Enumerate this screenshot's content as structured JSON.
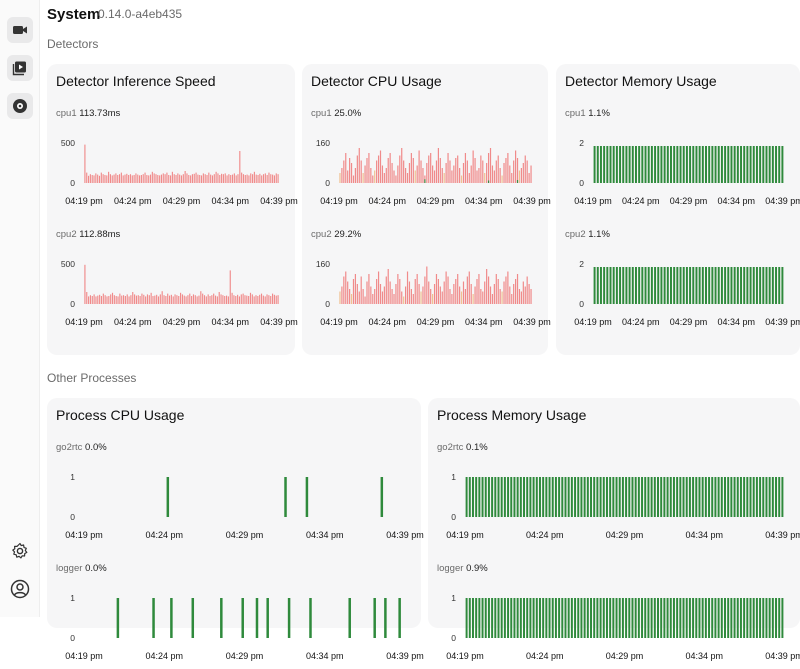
{
  "header": {
    "title": "System",
    "version": "0.14.0-a4eb435"
  },
  "sections": {
    "detectors": "Detectors",
    "other_processes": "Other Processes"
  },
  "sidebar": {
    "items": [
      {
        "icon": "video-icon",
        "active": true
      },
      {
        "icon": "playlist-icon",
        "active": true
      },
      {
        "icon": "disc-icon",
        "active": true
      },
      {
        "icon": "gear-icon",
        "active": false
      },
      {
        "icon": "user-icon",
        "active": false
      }
    ]
  },
  "colors": {
    "red": "#f08a8a",
    "orange": "#f0c090",
    "green": "#3a8a45",
    "bar_green": "#2f8a3c",
    "card_bg": "#f6f6f7"
  },
  "time_ticks": [
    "04:19 pm",
    "04:24 pm",
    "04:29 pm",
    "04:34 pm",
    "04:39 pm"
  ],
  "cards": {
    "inference": {
      "title": "Detector Inference Speed",
      "cpu1": {
        "label": "cpu1",
        "value": "113.73ms"
      },
      "cpu2": {
        "label": "cpu2",
        "value": "112.88ms"
      }
    },
    "cpu": {
      "title": "Detector CPU Usage",
      "cpu1": {
        "label": "cpu1",
        "value": "25.0%"
      },
      "cpu2": {
        "label": "cpu2",
        "value": "29.2%"
      }
    },
    "memory": {
      "title": "Detector Memory Usage",
      "cpu1": {
        "label": "cpu1",
        "value": "1.1%"
      },
      "cpu2": {
        "label": "cpu2",
        "value": "1.1%"
      }
    },
    "proc_cpu": {
      "title": "Process CPU Usage",
      "go2rtc": {
        "label": "go2rtc",
        "value": "0.0%"
      },
      "logger": {
        "label": "logger",
        "value": "0.0%"
      }
    },
    "proc_mem": {
      "title": "Process Memory Usage",
      "go2rtc": {
        "label": "go2rtc",
        "value": "0.1%"
      },
      "logger": {
        "label": "logger",
        "value": "0.9%"
      }
    }
  },
  "chart_data": [
    {
      "id": "inf1",
      "type": "bar",
      "ymax": 500,
      "yticks": [
        "500",
        "0"
      ],
      "color": "#f08a8a",
      "values": [
        480,
        130,
        90,
        110,
        100,
        95,
        120,
        105,
        90,
        130,
        110,
        100,
        95,
        140,
        110,
        95,
        105,
        120,
        100,
        110,
        130,
        95,
        105,
        115,
        100,
        110,
        95,
        100,
        120,
        105,
        95,
        100,
        110,
        130,
        100,
        95,
        105,
        140,
        120,
        110,
        100,
        95,
        105,
        120,
        110,
        130,
        100,
        95,
        140,
        110,
        100,
        120,
        105,
        95,
        110,
        150,
        120,
        100,
        95,
        110,
        115,
        130,
        105,
        100,
        95,
        120,
        110,
        100,
        130,
        105,
        95,
        110,
        140,
        120,
        100,
        115,
        110,
        120,
        95,
        110,
        100,
        105,
        120,
        95,
        110,
        400,
        130,
        110,
        100,
        105,
        95,
        120,
        110,
        140,
        105,
        100,
        115,
        95,
        110,
        120,
        100,
        130,
        110,
        105,
        95,
        120,
        110
      ]
    },
    {
      "id": "inf2",
      "type": "bar",
      "ymax": 500,
      "yticks": [
        "500",
        "0"
      ],
      "color": "#f08a8a",
      "values": [
        490,
        150,
        95,
        110,
        100,
        120,
        95,
        105,
        115,
        100,
        130,
        110,
        95,
        100,
        120,
        140,
        110,
        100,
        95,
        130,
        105,
        110,
        100,
        120,
        95,
        110,
        150,
        120,
        105,
        110,
        100,
        130,
        115,
        95,
        120,
        110,
        140,
        100,
        105,
        115,
        95,
        120,
        160,
        110,
        100,
        130,
        105,
        115,
        95,
        120,
        110,
        100,
        140,
        120,
        105,
        95,
        110,
        130,
        100,
        120,
        110,
        95,
        105,
        160,
        130,
        110,
        95,
        120,
        100,
        110,
        130,
        105,
        95,
        150,
        120,
        110,
        100,
        105,
        95,
        420,
        140,
        110,
        100,
        115,
        95,
        120,
        130,
        110,
        105,
        100,
        140,
        120,
        95,
        110,
        100,
        115,
        130,
        105,
        95,
        120,
        110,
        100,
        130,
        115,
        105,
        110
      ]
    },
    {
      "id": "cpu1",
      "type": "stacked-bar",
      "ymax": 160,
      "yticks": [
        "160",
        "0"
      ],
      "values": [
        40,
        60,
        90,
        120,
        50,
        100,
        80,
        30,
        60,
        110,
        140,
        90,
        40,
        70,
        100,
        120,
        60,
        30,
        50,
        90,
        110,
        130,
        70,
        40,
        60,
        100,
        120,
        80,
        50,
        30,
        70,
        110,
        140,
        90,
        60,
        40,
        80,
        120,
        100,
        50,
        70,
        130,
        90,
        60,
        30,
        80,
        110,
        120,
        70,
        50,
        90,
        140,
        100,
        60,
        40,
        80,
        120,
        90,
        50,
        70,
        100,
        110,
        60,
        30,
        80,
        120,
        90,
        40,
        70,
        130,
        100,
        50,
        60,
        110,
        90,
        40,
        80,
        120,
        140,
        70,
        50,
        90,
        110,
        60,
        30,
        80,
        100,
        120,
        70,
        40,
        90,
        130,
        100,
        50,
        60,
        80,
        110,
        90,
        40,
        70
      ],
      "green": [
        0,
        0,
        0,
        0,
        0,
        0,
        0,
        0,
        0,
        0,
        0,
        0,
        0,
        0,
        0,
        0,
        0,
        0,
        0,
        0,
        0,
        0,
        0,
        0,
        0,
        0,
        0,
        0,
        0,
        0,
        0,
        0,
        0,
        0,
        0,
        0,
        0,
        0,
        0,
        0,
        0,
        0,
        0,
        0,
        15,
        0,
        0,
        0,
        0,
        0,
        0,
        0,
        0,
        0,
        0,
        0,
        0,
        0,
        0,
        0,
        0,
        0,
        0,
        0,
        0,
        0,
        0,
        0,
        0,
        0,
        0,
        0,
        0,
        0,
        0,
        0,
        0,
        10,
        0,
        0,
        0,
        0,
        0,
        0,
        0,
        0,
        0,
        0,
        0,
        0,
        0,
        0,
        12,
        0,
        0,
        0,
        0,
        0,
        0,
        0
      ]
    },
    {
      "id": "cpu2",
      "type": "stacked-bar",
      "ymax": 160,
      "yticks": [
        "160",
        "0"
      ],
      "values": [
        50,
        70,
        110,
        130,
        90,
        60,
        40,
        100,
        120,
        80,
        50,
        110,
        60,
        30,
        90,
        120,
        70,
        40,
        60,
        100,
        130,
        80,
        50,
        70,
        110,
        140,
        90,
        60,
        40,
        80,
        120,
        100,
        50,
        30,
        70,
        130,
        90,
        60,
        40,
        100,
        120,
        80,
        50,
        70,
        110,
        150,
        90,
        60,
        40,
        80,
        120,
        100,
        70,
        50,
        90,
        130,
        110,
        60,
        40,
        80,
        100,
        120,
        70,
        50,
        90,
        60,
        110,
        130,
        80,
        40,
        70,
        100,
        120,
        60,
        50,
        90,
        140,
        110,
        70,
        40,
        80,
        120,
        100,
        60,
        50,
        90,
        110,
        130,
        70,
        40,
        80,
        100,
        120,
        60,
        50,
        90,
        70,
        110,
        80,
        60
      ],
      "green": [
        0,
        0,
        0,
        0,
        0,
        0,
        0,
        0,
        0,
        0,
        0,
        0,
        0,
        0,
        0,
        0,
        0,
        0,
        0,
        0,
        0,
        0,
        0,
        0,
        0,
        0,
        0,
        0,
        0,
        0,
        0,
        0,
        0,
        0,
        0,
        0,
        0,
        0,
        0,
        0,
        0,
        0,
        0,
        0,
        0,
        0,
        0,
        0,
        0,
        0,
        0,
        0,
        0,
        0,
        0,
        0,
        0,
        0,
        0,
        0,
        0,
        0,
        0,
        0,
        0,
        0,
        0,
        0,
        0,
        0,
        0,
        0,
        0,
        0,
        0,
        0,
        0,
        0,
        0,
        0,
        0,
        0,
        0,
        0,
        0,
        0,
        0,
        0,
        0,
        0,
        0,
        0,
        0,
        0,
        0,
        0,
        0,
        0,
        0,
        0
      ]
    },
    {
      "id": "mem1",
      "type": "bar",
      "ymax": 2,
      "yticks": [
        "2",
        "0"
      ],
      "color": "#2f8a3c",
      "count": 60,
      "value": 1.85
    },
    {
      "id": "mem2",
      "type": "bar",
      "ymax": 2,
      "yticks": [
        "2",
        "0"
      ],
      "color": "#2f8a3c",
      "count": 60,
      "value": 1.85
    },
    {
      "id": "pcpu1",
      "type": "bar",
      "ymax": 1,
      "yticks": [
        "1",
        "0"
      ],
      "color": "#2f8a3c",
      "count": 90,
      "spikes": [
        23,
        56,
        62,
        83
      ]
    },
    {
      "id": "pcpu2",
      "type": "bar",
      "ymax": 1,
      "yticks": [
        "1",
        "0"
      ],
      "color": "#2f8a3c",
      "count": 90,
      "spikes": [
        9,
        19,
        24,
        30,
        38,
        44,
        48,
        51,
        57,
        63,
        74,
        81,
        84,
        88
      ]
    },
    {
      "id": "pmem1",
      "type": "bar",
      "ymax": 1,
      "yticks": [
        "1",
        "0"
      ],
      "color": "#2f8a3c",
      "count": 100,
      "value": 1
    },
    {
      "id": "pmem2",
      "type": "bar",
      "ymax": 1,
      "yticks": [
        "1",
        "0"
      ],
      "color": "#2f8a3c",
      "count": 100,
      "value": 1
    }
  ]
}
